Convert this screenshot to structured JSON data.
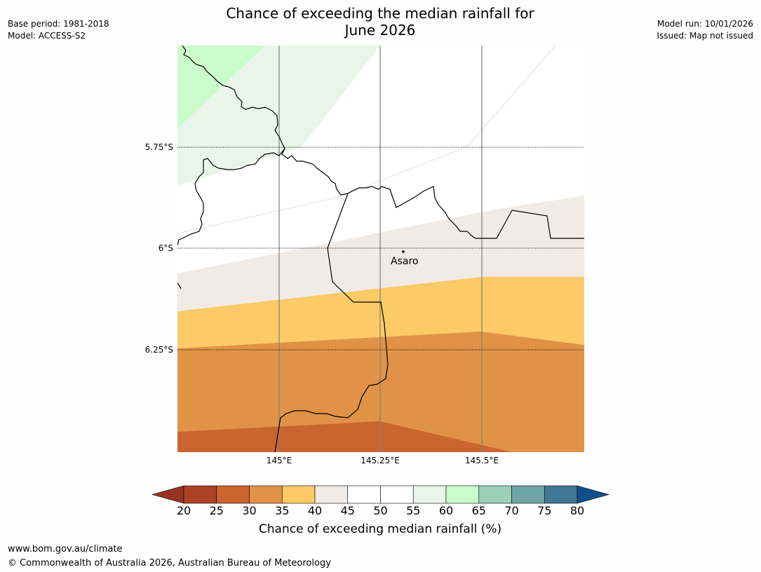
{
  "header": {
    "title_line1": "Chance of exceeding the median rainfall for",
    "title_line2": "June 2026",
    "base_period": "Base period: 1981-2018",
    "model": "Model: ACCESS-S2",
    "model_run": "Model run: 10/01/2026",
    "issued": "Issued: Map not issued"
  },
  "map": {
    "latitude_labels": [
      "5.75°S",
      "6°S",
      "6.25°S"
    ],
    "longitude_labels": [
      "145°E",
      "145.25°E",
      "145.5°E"
    ],
    "place_name": "Asaro"
  },
  "colorbar": {
    "ticks": [
      "20",
      "25",
      "30",
      "35",
      "40",
      "45",
      "50",
      "55",
      "60",
      "65",
      "70",
      "75",
      "80"
    ],
    "colors": [
      "#ad4325",
      "#cb6530",
      "#e09346",
      "#fdca68",
      "#f0ebe5",
      "#ffffff",
      "#ffffff",
      "#e9f5e9",
      "#cafbca",
      "#9cd1b8",
      "#6fa5a6",
      "#417895"
    ],
    "under_color": "#97341f",
    "over_color": "#114e8c",
    "label": "Chance of exceeding median rainfall (%)"
  },
  "footer": {
    "url": "www.bom.gov.au/climate",
    "copyright": "© Commonwealth of Australia 2026, Australian Bureau of Meteorology"
  }
}
